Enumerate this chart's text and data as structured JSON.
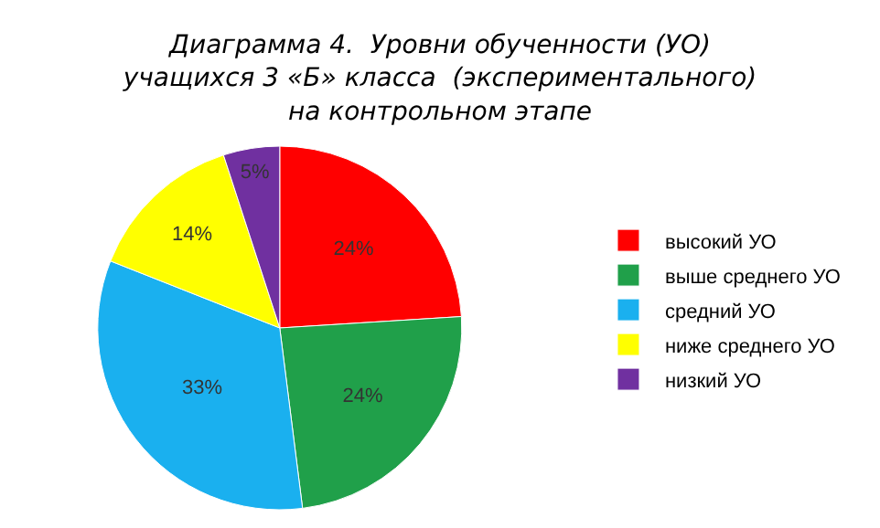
{
  "chart_data": {
    "type": "pie",
    "title": "Диаграмма 4.  Уровни обученности (УО)\nучащихся 3 «Б» класса  (экспериментального)\nна контрольном этапе",
    "categories": [
      "высокий УО",
      "выше среднего УО",
      "средний УО",
      "ниже среднего УО",
      "низкий УО"
    ],
    "values": [
      24,
      24,
      33,
      14,
      5
    ],
    "value_labels": [
      "24%",
      "24%",
      "33%",
      "14%",
      "5%"
    ],
    "colors": [
      "#ff0000",
      "#20a04a",
      "#1ab0ef",
      "#ffff00",
      "#7030a0"
    ],
    "legend": "right"
  }
}
